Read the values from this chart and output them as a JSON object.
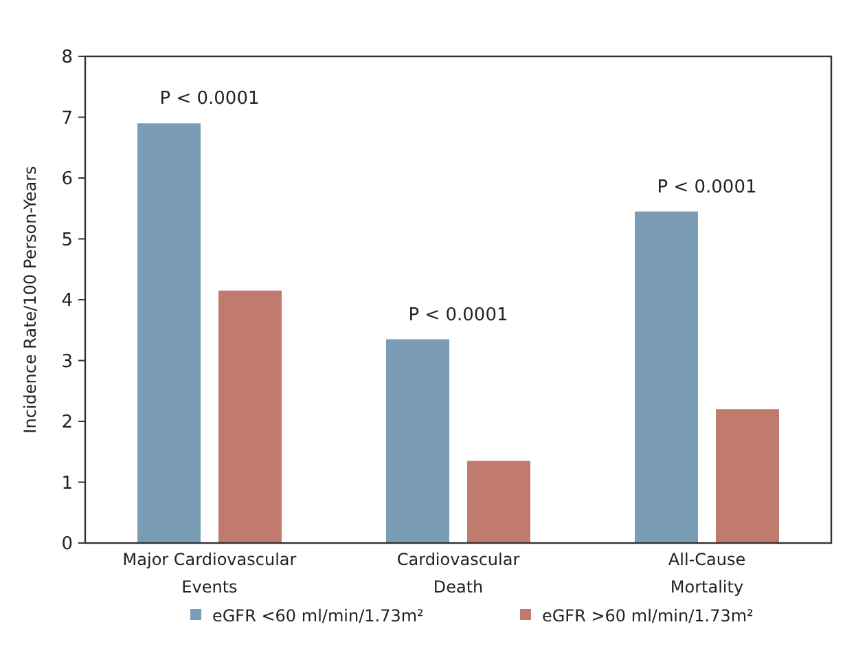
{
  "chart_data": {
    "type": "bar",
    "ylabel": "Incidence Rate/100 Person-Years",
    "categories": [
      "Major Cardiovascular Events",
      "Cardiovascular Death",
      "All-Cause Mortality"
    ],
    "series": [
      {
        "name": "eGFR <60 ml/min/1.73m²",
        "color": "#7a9db5",
        "values": [
          6.9,
          3.35,
          5.45
        ]
      },
      {
        "name": "eGFR >60 ml/min/1.73m²",
        "color": "#c07a6e",
        "values": [
          4.15,
          1.35,
          2.2
        ]
      }
    ],
    "ylim": [
      0,
      8
    ],
    "yticks": [
      0,
      1,
      2,
      3,
      4,
      5,
      6,
      7,
      8
    ],
    "legend": "bottom",
    "annotations": [
      "P < 0.0001",
      "P < 0.0001",
      "P < 0.0001"
    ]
  }
}
